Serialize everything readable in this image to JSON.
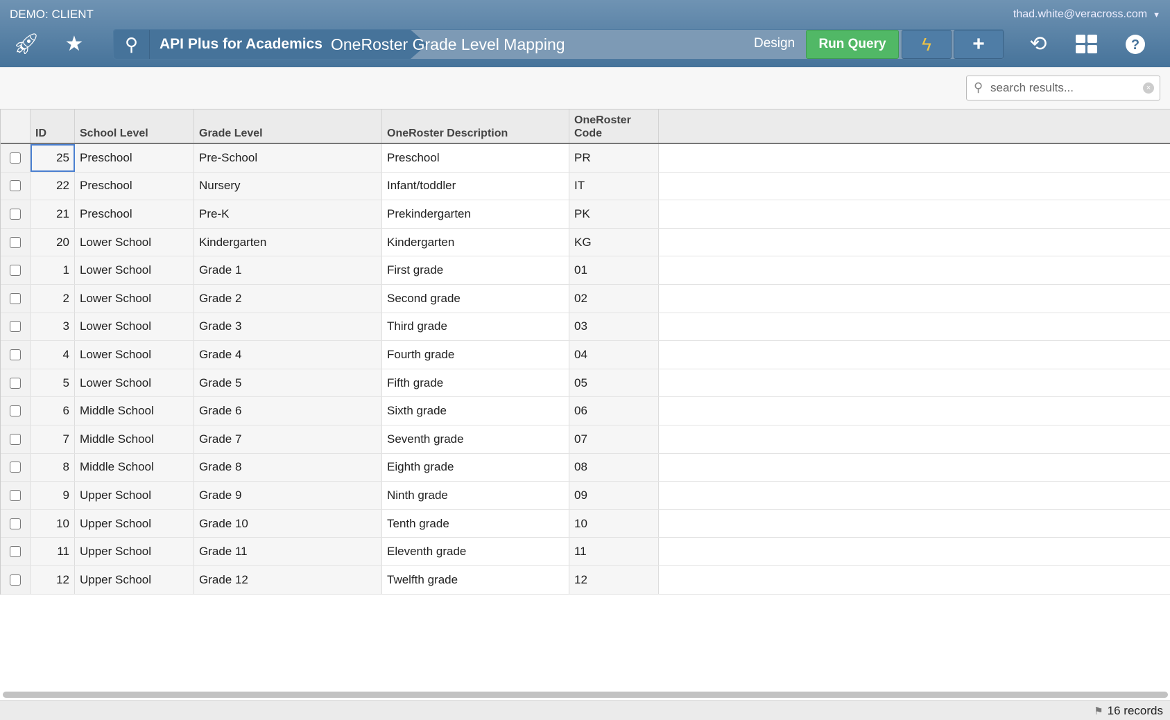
{
  "header": {
    "client": "DEMO: CLIENT",
    "user": "thad.white@veracross.com",
    "breadcrumb_app": "API Plus for Academics",
    "breadcrumb_page": "OneRoster Grade Level Mapping",
    "design_label": "Design",
    "run_query_label": "Run Query"
  },
  "icons": {
    "launch": "rocket-icon",
    "favorites": "star-icon",
    "search": "search-icon",
    "bolt": "lightning-icon",
    "add": "plus-icon",
    "history": "history-icon",
    "dashboard": "grid-icon",
    "help": "question-icon"
  },
  "search": {
    "placeholder": "search results...",
    "value": ""
  },
  "columns": [
    "ID",
    "School Level",
    "Grade Level",
    "OneRoster Description",
    "OneRoster Code"
  ],
  "rows": [
    [
      "25",
      "Preschool",
      "Pre-School",
      "Preschool",
      "PR"
    ],
    [
      "22",
      "Preschool",
      "Nursery",
      "Infant/toddler",
      "IT"
    ],
    [
      "21",
      "Preschool",
      "Pre-K",
      "Prekindergarten",
      "PK"
    ],
    [
      "20",
      "Lower School",
      "Kindergarten",
      "Kindergarten",
      "KG"
    ],
    [
      "1",
      "Lower School",
      "Grade 1",
      "First grade",
      "01"
    ],
    [
      "2",
      "Lower School",
      "Grade 2",
      "Second grade",
      "02"
    ],
    [
      "3",
      "Lower School",
      "Grade 3",
      "Third grade",
      "03"
    ],
    [
      "4",
      "Lower School",
      "Grade 4",
      "Fourth grade",
      "04"
    ],
    [
      "5",
      "Lower School",
      "Grade 5",
      "Fifth grade",
      "05"
    ],
    [
      "6",
      "Middle School",
      "Grade 6",
      "Sixth grade",
      "06"
    ],
    [
      "7",
      "Middle School",
      "Grade 7",
      "Seventh grade",
      "07"
    ],
    [
      "8",
      "Middle School",
      "Grade 8",
      "Eighth grade",
      "08"
    ],
    [
      "9",
      "Upper School",
      "Grade 9",
      "Ninth grade",
      "09"
    ],
    [
      "10",
      "Upper School",
      "Grade 10",
      "Tenth grade",
      "10"
    ],
    [
      "11",
      "Upper School",
      "Grade 11",
      "Eleventh grade",
      "11"
    ],
    [
      "12",
      "Upper School",
      "Grade 12",
      "Twelfth grade",
      "12"
    ]
  ],
  "status": {
    "records": "16 records"
  },
  "colors": {
    "header": "#46739a",
    "run_query": "#51b866",
    "bolt": "#f4c542"
  }
}
